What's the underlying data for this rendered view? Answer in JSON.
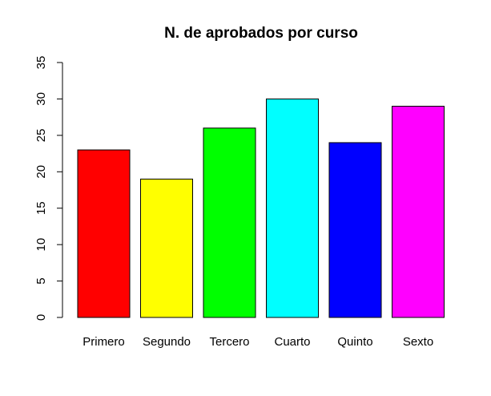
{
  "chart_data": {
    "type": "bar",
    "title": "N. de aprobados por curso",
    "xlabel": "",
    "ylabel": "",
    "categories": [
      "Primero",
      "Segundo",
      "Tercero",
      "Cuarto",
      "Quinto",
      "Sexto"
    ],
    "values": [
      23,
      19,
      26,
      30,
      24,
      29
    ],
    "colors": [
      "#ff0000",
      "#ffff00",
      "#00ff00",
      "#00ffff",
      "#0000ff",
      "#ff00ff"
    ],
    "ylim": [
      0,
      35
    ],
    "yticks": [
      0,
      5,
      10,
      15,
      20,
      25,
      30,
      35
    ],
    "grid": false,
    "legend": "none"
  }
}
